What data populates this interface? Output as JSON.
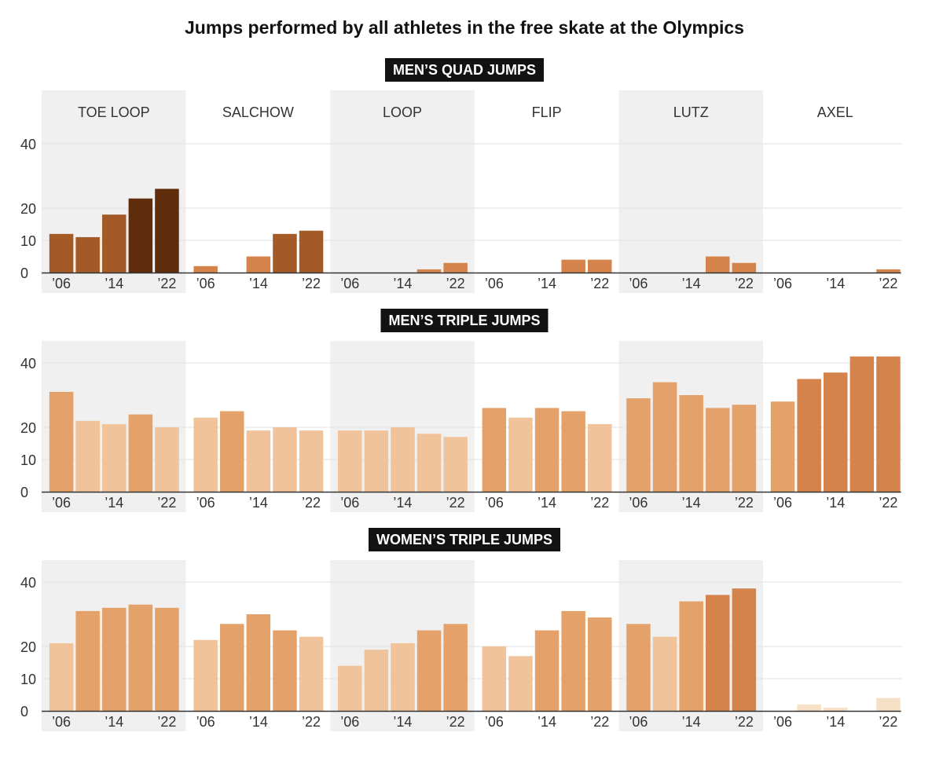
{
  "chart_data": {
    "type": "bar",
    "title": "Jumps performed by all athletes in the free skate at the Olympics",
    "jump_types": [
      "TOE LOOP",
      "SALCHOW",
      "LOOP",
      "FLIP",
      "LUTZ",
      "AXEL"
    ],
    "x": [
      "2006",
      "2010",
      "2014",
      "2018",
      "2022"
    ],
    "x_tick_labels": [
      "’06",
      "’14",
      "’22"
    ],
    "y_ticks": [
      0,
      10,
      20,
      40
    ],
    "ylim": [
      0,
      45
    ],
    "grid": true,
    "sections": [
      {
        "label": "MEN’S QUAD JUMPS",
        "panels": [
          {
            "jump": "TOE LOOP",
            "values": [
              12,
              11,
              18,
              23,
              26
            ]
          },
          {
            "jump": "SALCHOW",
            "values": [
              2,
              0,
              5,
              12,
              13
            ]
          },
          {
            "jump": "LOOP",
            "values": [
              0,
              0,
              0,
              1,
              3
            ]
          },
          {
            "jump": "FLIP",
            "values": [
              0,
              0,
              0,
              4,
              4
            ]
          },
          {
            "jump": "LUTZ",
            "values": [
              0,
              0,
              0,
              5,
              3
            ]
          },
          {
            "jump": "AXEL",
            "values": [
              0,
              0,
              0,
              0,
              1
            ]
          }
        ]
      },
      {
        "label": "MEN’S TRIPLE JUMPS",
        "panels": [
          {
            "jump": "TOE LOOP",
            "values": [
              31,
              22,
              21,
              24,
              20
            ]
          },
          {
            "jump": "SALCHOW",
            "values": [
              23,
              25,
              19,
              20,
              19
            ]
          },
          {
            "jump": "LOOP",
            "values": [
              19,
              19,
              20,
              18,
              17
            ]
          },
          {
            "jump": "FLIP",
            "values": [
              26,
              23,
              26,
              25,
              21
            ]
          },
          {
            "jump": "LUTZ",
            "values": [
              29,
              34,
              30,
              26,
              27
            ]
          },
          {
            "jump": "AXEL",
            "values": [
              28,
              35,
              37,
              42,
              42
            ]
          }
        ]
      },
      {
        "label": "WOMEN’S TRIPLE JUMPS",
        "panels": [
          {
            "jump": "TOE LOOP",
            "values": [
              21,
              31,
              32,
              33,
              32
            ]
          },
          {
            "jump": "SALCHOW",
            "values": [
              22,
              27,
              30,
              25,
              23
            ]
          },
          {
            "jump": "LOOP",
            "values": [
              14,
              19,
              21,
              25,
              27
            ]
          },
          {
            "jump": "FLIP",
            "values": [
              20,
              17,
              25,
              31,
              29
            ]
          },
          {
            "jump": "LUTZ",
            "values": [
              27,
              23,
              34,
              36,
              38
            ]
          },
          {
            "jump": "AXEL",
            "values": [
              0,
              2,
              1,
              0,
              4
            ]
          }
        ]
      }
    ]
  },
  "colors": {
    "panel_shade": "#f0f0f0",
    "gridline": "#e2e2e2",
    "baseline": "#333333",
    "bar_ramp": [
      "#f6e0c6",
      "#f0c39b",
      "#e4a26a",
      "#d4834a",
      "#a35a27",
      "#602d0c"
    ]
  }
}
